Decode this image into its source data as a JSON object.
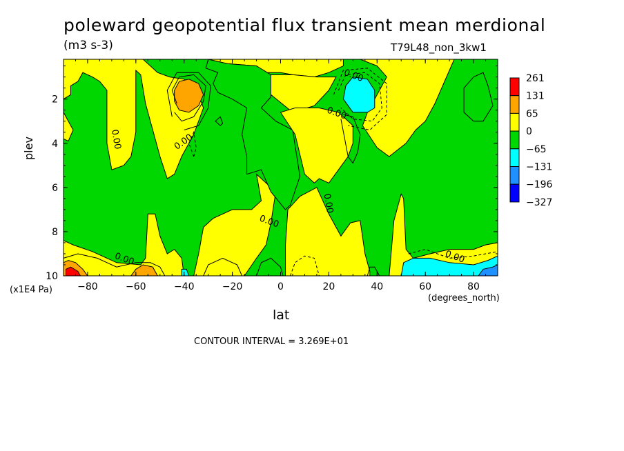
{
  "header": {
    "title": "poleward geopotential flux transient mean merdional",
    "units": "(m3 s-3)",
    "run": "T79L48_non_3kw1"
  },
  "footer": {
    "contour_interval": "CONTOUR INTERVAL = 3.269E+01"
  },
  "chart_data": {
    "type": "heatmap",
    "title": "poleward geopotential flux transient mean merdional",
    "subtitle": "(m3 s-3)",
    "annotation": "T79L48_non_3kw1",
    "xlabel": "lat",
    "xunits": "(degrees_north)",
    "ylabel": "plev",
    "yunits": "(x1E4 Pa)",
    "xlim": [
      -90,
      90
    ],
    "ylim": [
      10,
      0.2
    ],
    "y_inverted": true,
    "x_ticks": [
      -80,
      -60,
      -40,
      -20,
      0,
      20,
      40,
      60,
      80
    ],
    "y_ticks": [
      2,
      4,
      6,
      8,
      10
    ],
    "colorbar": {
      "levels": [
        261,
        131,
        65,
        0,
        -65,
        -131,
        -196,
        -327
      ],
      "colors": [
        "#ff0000",
        "#ffa500",
        "#ffff00",
        "#00d700",
        "#00ffff",
        "#1e90ff",
        "#0000ff"
      ]
    },
    "contour_labels": [
      {
        "text": "0.00",
        "lat": -69,
        "plev": 9.2
      },
      {
        "text": "0.00",
        "lat": -43,
        "plev": 4.3
      },
      {
        "text": "0.00",
        "lat": -70,
        "plev": 3.4
      },
      {
        "text": "0.00",
        "lat": -9,
        "plev": 7.5
      },
      {
        "text": "0.00",
        "lat": 18,
        "plev": 6.3
      },
      {
        "text": "0.00",
        "lat": 19,
        "plev": 2.6
      },
      {
        "text": "0.00",
        "lat": 26,
        "plev": 0.9
      },
      {
        "text": "0.00",
        "lat": 68,
        "plev": 9.1
      }
    ],
    "contour_interval": 32.69,
    "features": [
      {
        "kind": "max",
        "lat": -37,
        "plev": 2.0,
        "approx_value": 100
      },
      {
        "kind": "max",
        "lat": -87,
        "plev": 9.9,
        "approx_value": 261
      },
      {
        "kind": "max",
        "lat": -56,
        "plev": 9.8,
        "approx_value": 131
      },
      {
        "kind": "min",
        "lat": 32,
        "plev": 2.0,
        "approx_value": -100
      },
      {
        "kind": "min",
        "lat": 86,
        "plev": 9.8,
        "approx_value": -196
      }
    ]
  }
}
